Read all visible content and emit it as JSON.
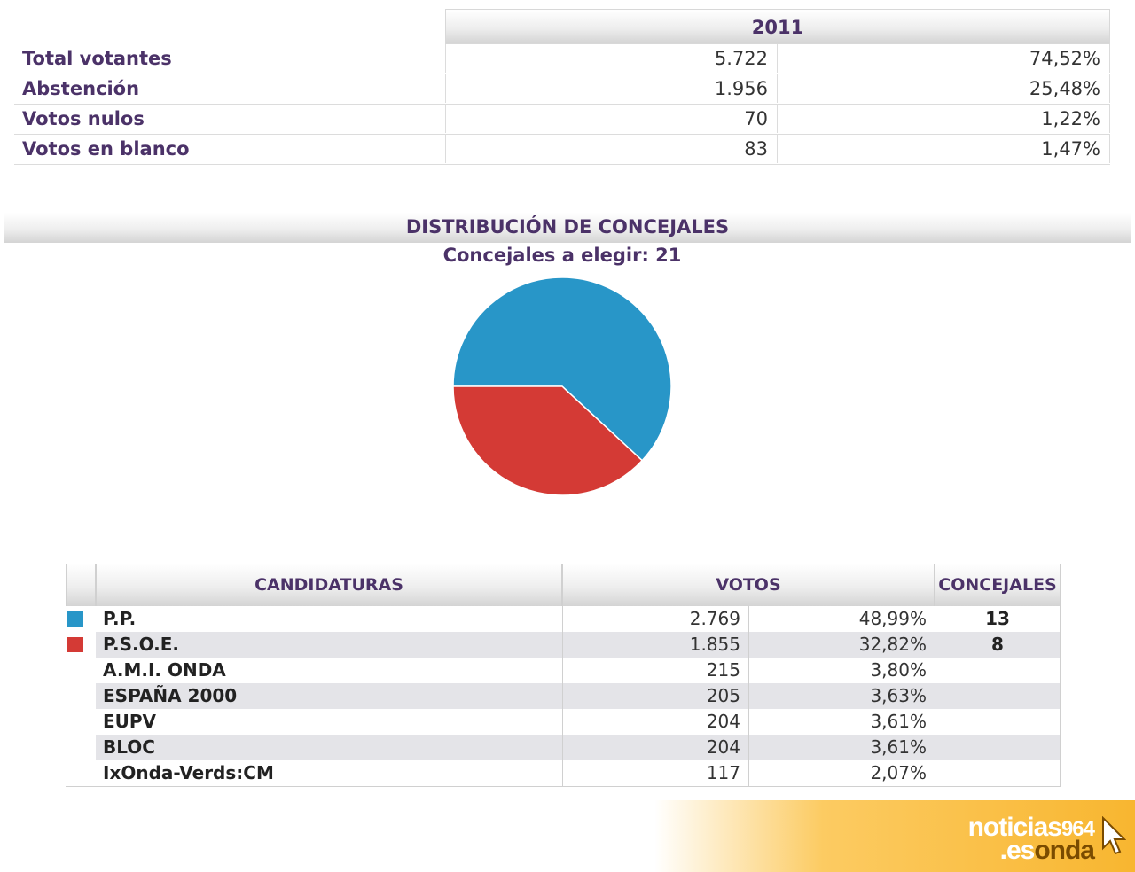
{
  "summary": {
    "year": "2011",
    "rows": [
      {
        "label": "Total votantes",
        "count": "5.722",
        "pct": "74,52%"
      },
      {
        "label": "Abstención",
        "count": "1.956",
        "pct": "25,48%"
      },
      {
        "label": "Votos nulos",
        "count": "70",
        "pct": "1,22%"
      },
      {
        "label": "Votos en blanco",
        "count": "83",
        "pct": "1,47%"
      }
    ]
  },
  "distribution": {
    "title": "DISTRIBUCIÓN DE CONCEJALES",
    "subtitle": "Concejales a elegir: 21"
  },
  "colors": {
    "pp": "#2896c8",
    "psoe": "#d43a35"
  },
  "chart_data": {
    "type": "pie",
    "title": "DISTRIBUCIÓN DE CONCEJALES",
    "subtitle": "Concejales a elegir: 21",
    "categories": [
      "P.P.",
      "P.S.O.E."
    ],
    "values": [
      13,
      8
    ],
    "colors": [
      "#2896c8",
      "#d43a35"
    ]
  },
  "candidates": {
    "headers": {
      "name": "CANDIDATURAS",
      "votes": "VOTOS",
      "seats": "CONCEJALES"
    },
    "rows": [
      {
        "name": "P.P.",
        "votes": "2.769",
        "pct": "48,99%",
        "seats": "13",
        "color": "#2896c8"
      },
      {
        "name": "P.S.O.E.",
        "votes": "1.855",
        "pct": "32,82%",
        "seats": "8",
        "color": "#d43a35"
      },
      {
        "name": "A.M.I. ONDA",
        "votes": "215",
        "pct": "3,80%",
        "seats": ""
      },
      {
        "name": "ESPAÑA 2000",
        "votes": "205",
        "pct": "3,63%",
        "seats": ""
      },
      {
        "name": "EUPV",
        "votes": "204",
        "pct": "3,61%",
        "seats": ""
      },
      {
        "name": "BLOC",
        "votes": "204",
        "pct": "3,61%",
        "seats": ""
      },
      {
        "name": "IxOnda-Verds:CM",
        "votes": "117",
        "pct": "2,07%",
        "seats": ""
      }
    ]
  },
  "logo": {
    "line1": "noticias",
    "number": "964",
    "line2_a": ".es",
    "line2_b": "onda"
  }
}
